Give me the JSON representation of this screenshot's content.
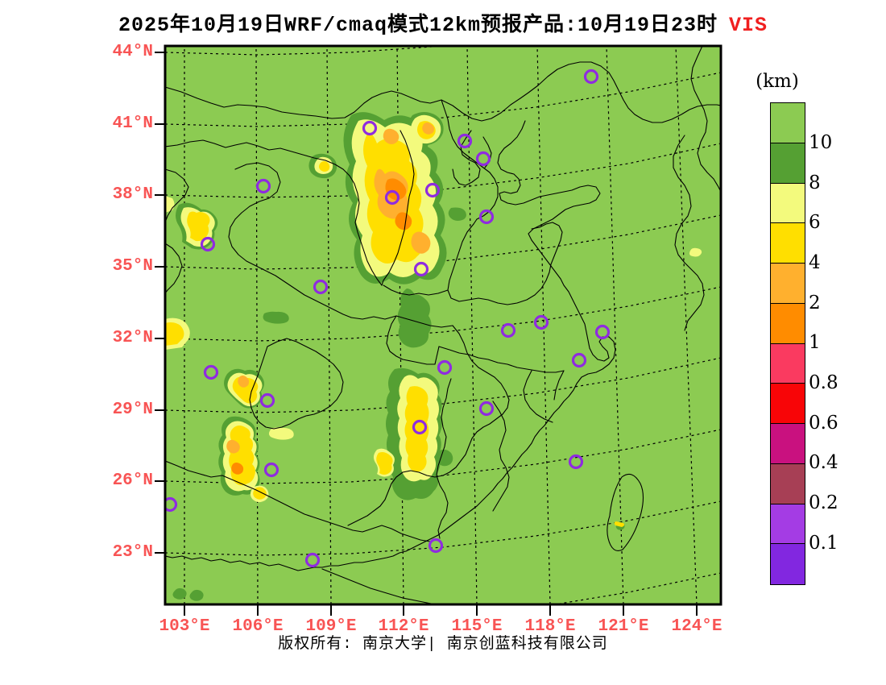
{
  "title": {
    "text": "2025年10月19日WRF/cmaq模式12km预报产品:10月19日23时",
    "highlight": "VIS"
  },
  "footer": {
    "text": "版权所有: 南京大学| 南京创蓝科技有限公司"
  },
  "axes": {
    "lat_labels": [
      "44°N",
      "41°N",
      "38°N",
      "35°N",
      "32°N",
      "29°N",
      "26°N",
      "23°N"
    ],
    "lon_labels": [
      "103°E",
      "106°E",
      "109°E",
      "112°E",
      "115°E",
      "118°E",
      "121°E",
      "124°E"
    ]
  },
  "colorbar": {
    "unit": "(km)",
    "labels": [
      "10",
      "8",
      "6",
      "4",
      "2",
      "1",
      "0.8",
      "0.6",
      "0.4",
      "0.2",
      "0.1"
    ],
    "colors": [
      "#8ccb52",
      "#55a033",
      "#f3fa7d",
      "#ffdf00",
      "#ffb02e",
      "#ff8c00",
      "#fa3a60",
      "#f80507",
      "#c9117f",
      "#a73f55",
      "#a43ce4",
      "#8227e0"
    ]
  },
  "palette": {
    "map_background_green": "#8ccb52",
    "dark_green_8_10km": "#55a033",
    "pale_yellow_6_8km": "#f3fa7d",
    "yellow_4_6km": "#ffdf00",
    "light_orange_2_4km": "#ffb02e",
    "orange_1_2km": "#ff8c00",
    "station_marker_purple": "#8f2be0",
    "axis_label_red": "#f85454",
    "title_vis_red": "#f02020"
  },
  "map": {
    "stations": [
      [
        734,
        95
      ],
      [
        459,
        159
      ],
      [
        577,
        175
      ],
      [
        600,
        197
      ],
      [
        327,
        231
      ],
      [
        537,
        236
      ],
      [
        487,
        245
      ],
      [
        604,
        269
      ],
      [
        258,
        303
      ],
      [
        523,
        334
      ],
      [
        398,
        356
      ],
      [
        672,
        400
      ],
      [
        631,
        410
      ],
      [
        748,
        412
      ],
      [
        719,
        447
      ],
      [
        552,
        456
      ],
      [
        262,
        462
      ],
      [
        332,
        497
      ],
      [
        604,
        507
      ],
      [
        521,
        530
      ],
      [
        715,
        573
      ],
      [
        337,
        583
      ],
      [
        211,
        626
      ],
      [
        541,
        677
      ],
      [
        388,
        695
      ]
    ]
  },
  "chart_data": {
    "type": "heatmap",
    "title": "2025年10月19日WRF/cmaq模式12km预报产品:10月19日23时 VIS",
    "variable": "visibility",
    "unit": "km",
    "legend_bounds": [
      10,
      8,
      6,
      4,
      2,
      1,
      0.8,
      0.6,
      0.4,
      0.2,
      0.1
    ],
    "legend_position": "right",
    "x_ticks": [
      "103°E",
      "106°E",
      "109°E",
      "112°E",
      "115°E",
      "118°E",
      "121°E",
      "124°E"
    ],
    "y_ticks": [
      "44°N",
      "41°N",
      "38°N",
      "35°N",
      "32°N",
      "29°N",
      "26°N",
      "23°N"
    ],
    "grid": true
  }
}
